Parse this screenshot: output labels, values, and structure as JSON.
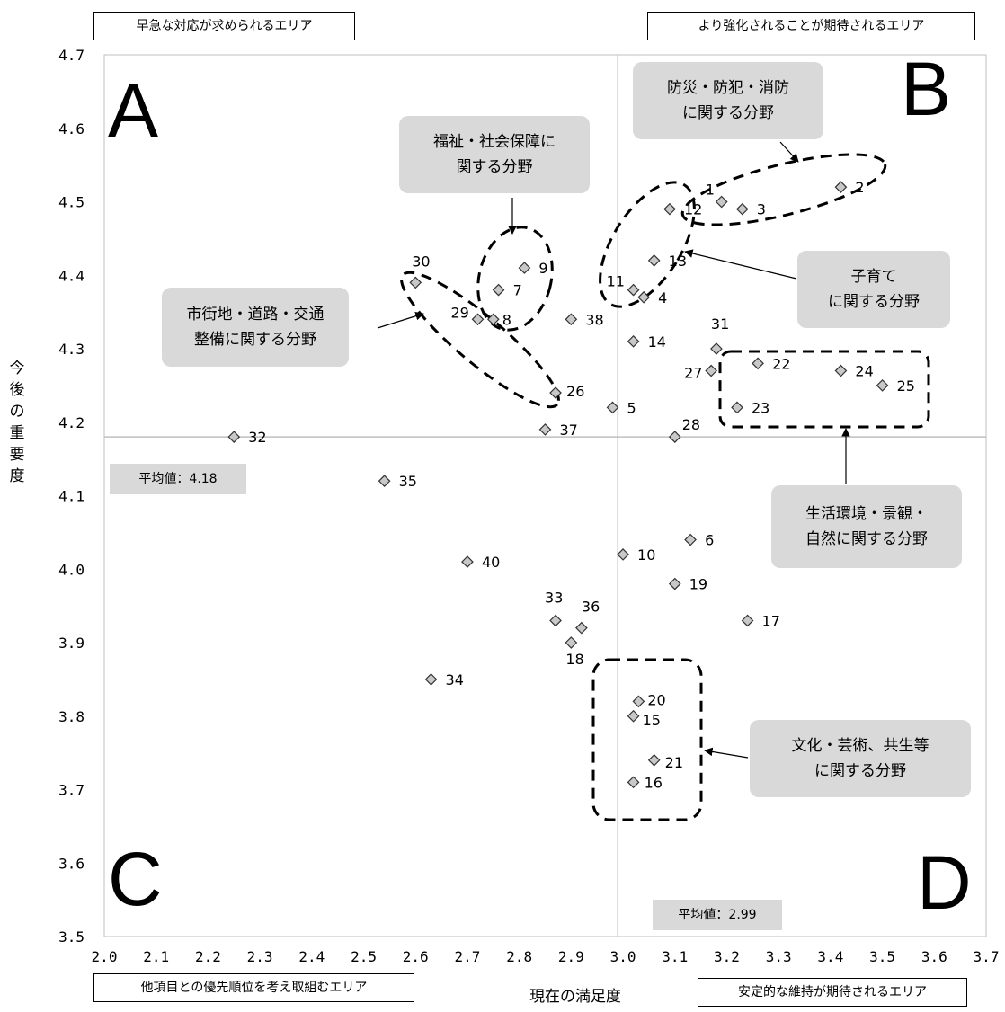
{
  "chart_data": {
    "type": "scatter",
    "xlabel": "現在の満足度",
    "ylabel": "今後の重要度",
    "xlim": [
      2.0,
      3.7
    ],
    "ylim": [
      3.5,
      4.7
    ],
    "x_ticks": [
      "2.0",
      "2.1",
      "2.2",
      "2.3",
      "2.4",
      "2.5",
      "2.6",
      "2.7",
      "2.8",
      "2.9",
      "3.0",
      "3.1",
      "3.2",
      "3.3",
      "3.4",
      "3.5",
      "3.6",
      "3.7"
    ],
    "y_ticks": [
      "3.5",
      "3.6",
      "3.7",
      "3.8",
      "3.9",
      "4.0",
      "4.1",
      "4.2",
      "4.3",
      "4.4",
      "4.5",
      "4.6",
      "4.7"
    ],
    "average_x": 2.99,
    "average_y": 4.18,
    "average_x_label": "平均値：2.99",
    "average_y_label": "平均値：4.18",
    "grid": false,
    "marker": "diamond",
    "points": [
      {
        "id": "1",
        "x": 3.19,
        "y": 4.5
      },
      {
        "id": "2",
        "x": 3.42,
        "y": 4.52
      },
      {
        "id": "3",
        "x": 3.23,
        "y": 4.49
      },
      {
        "id": "4",
        "x": 3.04,
        "y": 4.37
      },
      {
        "id": "5",
        "x": 2.98,
        "y": 4.22
      },
      {
        "id": "6",
        "x": 3.13,
        "y": 4.04
      },
      {
        "id": "7",
        "x": 2.76,
        "y": 4.38
      },
      {
        "id": "8",
        "x": 2.75,
        "y": 4.34
      },
      {
        "id": "9",
        "x": 2.81,
        "y": 4.41
      },
      {
        "id": "10",
        "x": 3.0,
        "y": 4.02
      },
      {
        "id": "11",
        "x": 3.02,
        "y": 4.38
      },
      {
        "id": "12",
        "x": 3.09,
        "y": 4.49
      },
      {
        "id": "13",
        "x": 3.06,
        "y": 4.42
      },
      {
        "id": "14",
        "x": 3.02,
        "y": 4.31
      },
      {
        "id": "15",
        "x": 3.02,
        "y": 3.8
      },
      {
        "id": "16",
        "x": 3.02,
        "y": 3.71
      },
      {
        "id": "17",
        "x": 3.24,
        "y": 3.93
      },
      {
        "id": "18",
        "x": 2.9,
        "y": 3.9
      },
      {
        "id": "19",
        "x": 3.1,
        "y": 3.98
      },
      {
        "id": "20",
        "x": 3.03,
        "y": 3.82
      },
      {
        "id": "21",
        "x": 3.06,
        "y": 3.74
      },
      {
        "id": "22",
        "x": 3.26,
        "y": 4.28
      },
      {
        "id": "23",
        "x": 3.22,
        "y": 4.22
      },
      {
        "id": "24",
        "x": 3.42,
        "y": 4.27
      },
      {
        "id": "25",
        "x": 3.5,
        "y": 4.25
      },
      {
        "id": "26",
        "x": 2.87,
        "y": 4.24
      },
      {
        "id": "27",
        "x": 3.17,
        "y": 4.27
      },
      {
        "id": "28",
        "x": 3.1,
        "y": 4.18
      },
      {
        "id": "29",
        "x": 2.72,
        "y": 4.34
      },
      {
        "id": "30",
        "x": 2.6,
        "y": 4.39
      },
      {
        "id": "31",
        "x": 3.18,
        "y": 4.3
      },
      {
        "id": "32",
        "x": 2.25,
        "y": 4.18
      },
      {
        "id": "33",
        "x": 2.87,
        "y": 3.93
      },
      {
        "id": "34",
        "x": 2.63,
        "y": 3.85
      },
      {
        "id": "35",
        "x": 2.54,
        "y": 4.12
      },
      {
        "id": "36",
        "x": 2.92,
        "y": 3.92
      },
      {
        "id": "37",
        "x": 2.85,
        "y": 4.19
      },
      {
        "id": "38",
        "x": 2.9,
        "y": 4.34
      },
      {
        "id": "40",
        "x": 2.7,
        "y": 4.01
      }
    ]
  },
  "quadrants": {
    "a": "A",
    "b": "B",
    "c": "C",
    "d": "D"
  },
  "area_labels": {
    "top_left": "早急な対応が求められるエリア",
    "top_right": "より強化されることが期待されるエリア",
    "bottom_left": "他項目との優先順位を考え取組むエリア",
    "bottom_right": "安定的な維持が期待されるエリア"
  },
  "callouts": {
    "disaster": [
      "防災・防犯・消防",
      "に関する分野"
    ],
    "welfare": [
      "福祉・社会保障に",
      "関する分野"
    ],
    "childcare": [
      "子育て",
      "に関する分野"
    ],
    "urban": [
      "市街地・道路・交通",
      "整備に関する分野"
    ],
    "environment": [
      "生活環境・景観・",
      "自然に関する分野"
    ],
    "culture": [
      "文化・芸術、共生等",
      "に関する分野"
    ]
  },
  "colors": {
    "marker_fill": "#c8c8c8",
    "callout_bg": "#d9d9d9",
    "avg_line": "#bfbfbf"
  }
}
